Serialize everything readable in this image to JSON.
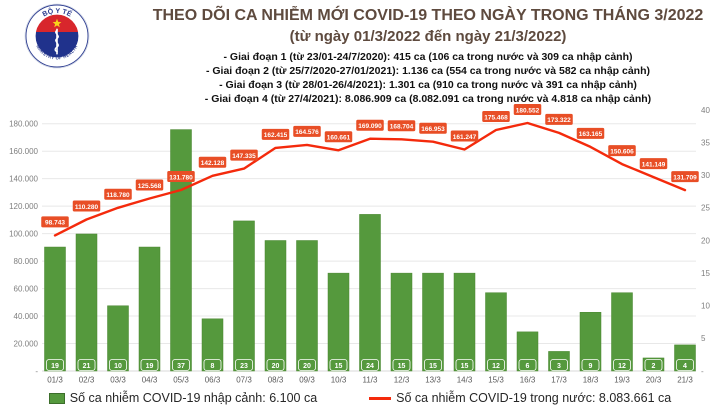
{
  "logo": {
    "top_text": "BỘ Y TẾ",
    "bottom_text": "MINISTRY OF HEALTH"
  },
  "header": {
    "title": "THEO DÕI CA NHIỄM MỚI COVID-19 THEO NGÀY TRONG THÁNG 3/2022",
    "subtitle": "(từ ngày 01/3/2022 đến ngày 21/3/2022)",
    "notes": [
      "- Giai đoạn 1 (từ 23/01-24/7/2020): 415 ca (106 ca trong nước và 309 ca nhập cảnh)",
      "- Giai đoạn 2 (từ 25/7/2020-27/01/2021): 1.136 ca (554 ca trong nước và 582 ca nhập cảnh)",
      "- Giai đoạn 3 (từ 28/01-26/4/2021): 1.301 ca (910 ca trong nước và 391 ca nhập cảnh)",
      "- Giai đoạn 4 (từ 27/4/2021): 8.086.909 ca (8.082.091 ca trong nước và 4.818 ca nhập cảnh)"
    ]
  },
  "chart_data": {
    "type": "combo-bar-line",
    "categories": [
      "01/3",
      "02/3",
      "03/3",
      "04/3",
      "05/3",
      "06/3",
      "07/3",
      "08/3",
      "09/3",
      "10/3",
      "11/3",
      "12/3",
      "13/3",
      "14/3",
      "15/3",
      "16/3",
      "17/3",
      "18/3",
      "19/3",
      "20/3",
      "21/3"
    ],
    "series": [
      {
        "name": "Số ca nhiễm COVID-19 nhập cảnh",
        "type": "bar",
        "axis": "right",
        "color": "#55993d",
        "border_color": "#49852f",
        "values": [
          19,
          21,
          10,
          19,
          37,
          8,
          23,
          20,
          20,
          15,
          24,
          15,
          15,
          15,
          12,
          6,
          3,
          9,
          12,
          2,
          4
        ]
      },
      {
        "name": "Số ca nhiễm COVID-19 trong nước",
        "type": "line",
        "axis": "left",
        "color": "#f42a0c",
        "label_bg": "#e84e26",
        "values": [
          98743,
          110280,
          118780,
          125568,
          131780,
          142128,
          147335,
          162415,
          164576,
          160661,
          169090,
          168704,
          166953,
          161247,
          175468,
          180552,
          173322,
          163165,
          150606,
          141149,
          131709
        ],
        "labels": [
          "98.743",
          "110.280",
          "118.780",
          "125.568",
          "131.780",
          "142.128",
          "147.335",
          "162.415",
          "164.576",
          "160.661",
          "169.090",
          "168.704",
          "166.953",
          "161.247",
          "175.468",
          "180.552",
          "173.322",
          "163.165",
          "150.606",
          "141.149",
          "131.709"
        ]
      }
    ],
    "left_axis": {
      "min": 0,
      "max": 190000,
      "tick_values": [
        180000,
        160000,
        140000,
        120000,
        100000,
        80000,
        60000,
        40000,
        20000,
        0
      ],
      "tick_labels": [
        "180.000",
        "160.000",
        "140.000",
        "120.000",
        "100.000",
        "80.000",
        "60.000",
        "40.000",
        "20.000",
        "-"
      ]
    },
    "right_axis": {
      "min": 0,
      "max": 40,
      "tick_values": [
        40,
        35,
        30,
        25,
        20,
        15,
        10,
        5,
        0
      ],
      "tick_labels": [
        "40",
        "35",
        "30",
        "25",
        "20",
        "15",
        "10",
        "5",
        "-"
      ]
    },
    "grid": "horizontal",
    "grid_color": "#e8e8e8",
    "axis_label_color": "#7f7f7f",
    "x_label_color": "#595959"
  },
  "legend": {
    "items": [
      {
        "label": "Số ca nhiễm COVID-19 nhập cảnh: 6.100 ca",
        "swatch": "bar",
        "color": "#55993d"
      },
      {
        "label": "Số ca nhiễm COVID-19 trong nước: 8.083.661 ca",
        "swatch": "line",
        "color": "#f42a0c"
      }
    ]
  }
}
